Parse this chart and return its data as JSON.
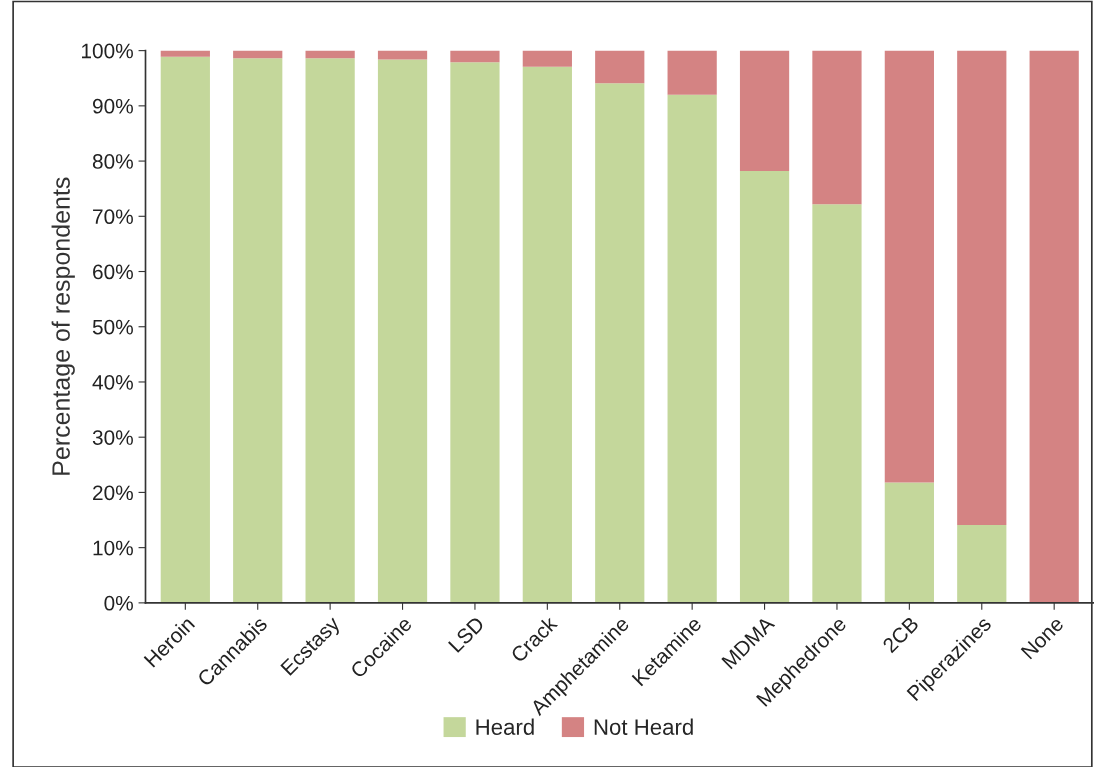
{
  "chart_data": {
    "type": "bar",
    "stacked": true,
    "ylabel": "Percentage of respondents",
    "categories": [
      "Heroin",
      "Cannabis",
      "Ecstasy",
      "Cocaine",
      "LSD",
      "Crack",
      "Amphetamine",
      "Ketamine",
      "MDMA",
      "Mephedrone",
      "2CB",
      "Piperazines",
      "None"
    ],
    "series": [
      {
        "name": "Heard",
        "color": "#c4d79b",
        "values": [
          98.9,
          98.6,
          98.6,
          98.4,
          97.9,
          97.1,
          94.1,
          92.0,
          78.2,
          72.2,
          21.8,
          14.1,
          0
        ]
      },
      {
        "name": "Not Heard",
        "color": "#d48383",
        "values": [
          1.1,
          1.4,
          1.4,
          1.6,
          2.1,
          2.9,
          5.9,
          8.0,
          21.8,
          27.8,
          78.2,
          85.9,
          100
        ]
      }
    ],
    "ylim": [
      0,
      100
    ],
    "yticks": [
      {
        "value": 0,
        "label": "0%"
      },
      {
        "value": 10,
        "label": "10%"
      },
      {
        "value": 20,
        "label": "20%"
      },
      {
        "value": 30,
        "label": "30%"
      },
      {
        "value": 40,
        "label": "40%"
      },
      {
        "value": 50,
        "label": "50%"
      },
      {
        "value": 60,
        "label": "60%"
      },
      {
        "value": 70,
        "label": "70%"
      },
      {
        "value": 80,
        "label": "80%"
      },
      {
        "value": 90,
        "label": "90%"
      },
      {
        "value": 100,
        "label": "100%"
      }
    ],
    "grid": false,
    "legend": "bottom"
  }
}
